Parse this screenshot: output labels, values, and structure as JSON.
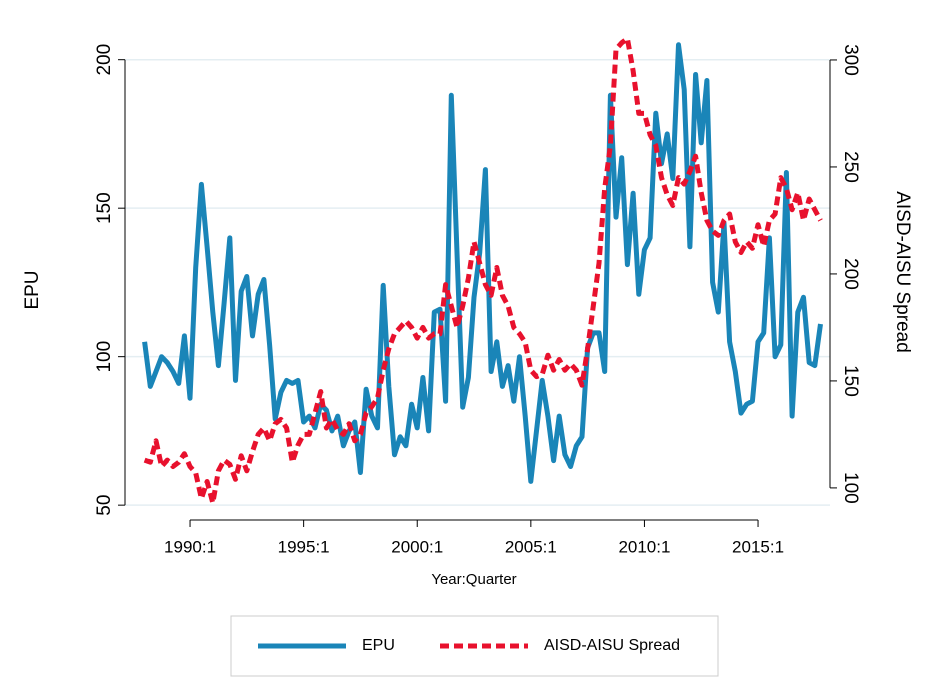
{
  "chart_data": {
    "type": "line",
    "x_label": "Year:Quarter",
    "y_label": "EPU",
    "y2_label": "AISD-AISU Spread",
    "x": [
      "1988:1",
      "1988:2",
      "1988:3",
      "1988:4",
      "1989:1",
      "1989:2",
      "1989:3",
      "1989:4",
      "1990:1",
      "1990:2",
      "1990:3",
      "1990:4",
      "1991:1",
      "1991:2",
      "1991:3",
      "1991:4",
      "1992:1",
      "1992:2",
      "1992:3",
      "1992:4",
      "1993:1",
      "1993:2",
      "1993:3",
      "1993:4",
      "1994:1",
      "1994:2",
      "1994:3",
      "1994:4",
      "1995:1",
      "1995:2",
      "1995:3",
      "1995:4",
      "1996:1",
      "1996:2",
      "1996:3",
      "1996:4",
      "1997:1",
      "1997:2",
      "1997:3",
      "1997:4",
      "1998:1",
      "1998:2",
      "1998:3",
      "1998:4",
      "1999:1",
      "1999:2",
      "1999:3",
      "1999:4",
      "2000:1",
      "2000:2",
      "2000:3",
      "2000:4",
      "2001:1",
      "2001:2",
      "2001:3",
      "2001:4",
      "2002:1",
      "2002:2",
      "2002:3",
      "2002:4",
      "2003:1",
      "2003:2",
      "2003:3",
      "2003:4",
      "2004:1",
      "2004:2",
      "2004:3",
      "2004:4",
      "2005:1",
      "2005:2",
      "2005:3",
      "2005:4",
      "2006:1",
      "2006:2",
      "2006:3",
      "2006:4",
      "2007:1",
      "2007:2",
      "2007:3",
      "2007:4",
      "2008:1",
      "2008:2",
      "2008:3",
      "2008:4",
      "2009:1",
      "2009:2",
      "2009:3",
      "2009:4",
      "2010:1",
      "2010:2",
      "2010:3",
      "2010:4",
      "2011:1",
      "2011:2",
      "2011:3",
      "2011:4",
      "2012:1",
      "2012:2",
      "2012:3",
      "2012:4",
      "2013:1",
      "2013:2",
      "2013:3",
      "2013:4",
      "2014:1",
      "2014:2",
      "2014:3",
      "2014:4",
      "2015:1",
      "2015:2",
      "2015:3",
      "2015:4",
      "2016:1",
      "2016:2",
      "2016:3",
      "2016:4",
      "2017:1",
      "2017:2",
      "2017:3",
      "2017:4"
    ],
    "xticks": [
      "1990:1",
      "1995:1",
      "2000:1",
      "2005:1",
      "2010:1",
      "2015:1"
    ],
    "ylim": [
      45,
      210
    ],
    "yticks": [
      50,
      100,
      150,
      200
    ],
    "y2lim": [
      85,
      314
    ],
    "y2ticks": [
      100,
      150,
      200,
      250,
      300
    ],
    "grid": true,
    "series": [
      {
        "name": "EPU",
        "color": "#1a85b8",
        "dash": false,
        "values": [
          105,
          90,
          95,
          100,
          98,
          95,
          91,
          107,
          86,
          130,
          158,
          137,
          115,
          97,
          118,
          140,
          92,
          122,
          127,
          107,
          121,
          126,
          104,
          79,
          88,
          92,
          91,
          92,
          78,
          80,
          76,
          84,
          82,
          75,
          80,
          70,
          75,
          78,
          61,
          89,
          80,
          76,
          124,
          90,
          67,
          73,
          70,
          84,
          76,
          93,
          75,
          115,
          116,
          85,
          188,
          135,
          83,
          93,
          120,
          135,
          163,
          95,
          105,
          90,
          97,
          85,
          100,
          80,
          58,
          75,
          92,
          80,
          65,
          80,
          67,
          63,
          70,
          73,
          103,
          108,
          108,
          95,
          188,
          147,
          167,
          131,
          155,
          121,
          136,
          140,
          182,
          165,
          175,
          160,
          205,
          190,
          137,
          195,
          172,
          193,
          125,
          115,
          145,
          105,
          95,
          81,
          84,
          85,
          105,
          108,
          140,
          100,
          104,
          162,
          80,
          115,
          120,
          98,
          97,
          111
        ]
      },
      {
        "name": "AISD-AISU Spread",
        "color": "#e8112d",
        "dash": true,
        "axis": "y2",
        "values": [
          113,
          112,
          122,
          110,
          113,
          110,
          112,
          116,
          110,
          107,
          95,
          103,
          93,
          108,
          113,
          111,
          104,
          115,
          108,
          117,
          125,
          128,
          122,
          130,
          132,
          128,
          112,
          120,
          125,
          125,
          135,
          145,
          128,
          132,
          127,
          125,
          130,
          122,
          125,
          135,
          138,
          142,
          155,
          165,
          172,
          175,
          178,
          175,
          170,
          175,
          170,
          172,
          172,
          195,
          185,
          175,
          185,
          198,
          215,
          205,
          195,
          190,
          203,
          190,
          185,
          175,
          172,
          168,
          155,
          152,
          153,
          162,
          155,
          160,
          155,
          158,
          155,
          148,
          165,
          185,
          205,
          240,
          260,
          305,
          308,
          310,
          295,
          275,
          275,
          265,
          260,
          245,
          237,
          232,
          245,
          242,
          248,
          255,
          238,
          225,
          220,
          218,
          225,
          228,
          215,
          210,
          215,
          212,
          223,
          213,
          225,
          228,
          245,
          240,
          230,
          238,
          225,
          235,
          230,
          225
        ]
      }
    ]
  }
}
